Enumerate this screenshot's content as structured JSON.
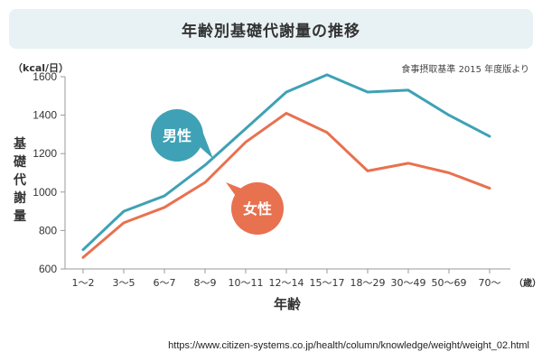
{
  "title": "年齢別基礎代謝量の推移",
  "source_note": "食事摂取基準 2015 年度版より",
  "url": "https://www.citizen-systems.co.jp/health/column/knowledge/weight/weight_02.html",
  "chart_data": {
    "type": "line",
    "title": "年齢別基礎代謝量の推移",
    "xlabel": "年齢",
    "x_unit": "（歳）",
    "ylabel": "基礎代謝量",
    "y_unit": "（kcal/日）",
    "categories": [
      "1～2",
      "3～5",
      "6～7",
      "8～9",
      "10～11",
      "12～14",
      "15～17",
      "18～29",
      "30～49",
      "50～69",
      "70～"
    ],
    "ylim": [
      600,
      1600
    ],
    "yticks": [
      600,
      800,
      1000,
      1200,
      1400,
      1600
    ],
    "grid": false,
    "legend": "inline-bubbles",
    "series": [
      {
        "name": "男性",
        "color": "#3fa1b5",
        "values": [
          700,
          900,
          980,
          1140,
          1330,
          1520,
          1610,
          1520,
          1530,
          1400,
          1290
        ]
      },
      {
        "name": "女性",
        "color": "#e8714f",
        "values": [
          660,
          840,
          920,
          1050,
          1260,
          1410,
          1310,
          1110,
          1150,
          1100,
          1020
        ]
      }
    ]
  }
}
